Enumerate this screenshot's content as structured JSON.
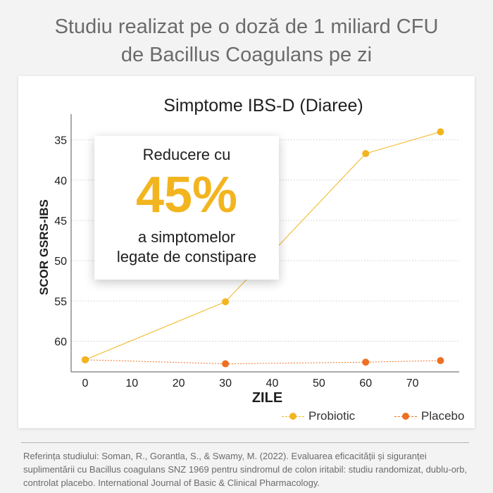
{
  "headline": {
    "line1": "Studiu realizat pe o doză de 1 miliard CFU",
    "line2": "de Bacillus Coagulans pe zi"
  },
  "callout": {
    "line1": "Reducere cu",
    "big": "45%",
    "line2": "a simptomelor",
    "line3": "legate de constipare",
    "accent_color": "#f2b51f"
  },
  "reference": "Referința studiului: Soman, R., Gorantla, S., & Swamy, M. (2022). Evaluarea eficacității și siguranței suplimentării cu Bacillus coagulans SNZ 1969 pentru sindromul de colon iritabil: studiu randomizat, dublu-orb, controlat placebo. International Journal of Basic & Clinical Pharmacology.",
  "chart_data": {
    "type": "line",
    "title": "Simptome IBS-D (Diaree)",
    "xlabel": "ZILE",
    "ylabel": "SCOR GSRS-IBS",
    "x_ticks": [
      0,
      10,
      20,
      30,
      40,
      50,
      60,
      70
    ],
    "y_ticks": [
      35,
      40,
      45,
      50,
      55,
      60
    ],
    "xlim": [
      -3,
      80
    ],
    "ylim": [
      63.8,
      32.5
    ],
    "y_inverted": true,
    "grid": "horizontal, dotted",
    "legend_position": "bottom-right",
    "series": [
      {
        "name": "Probiotic",
        "color": "#f2b51f",
        "x": [
          0,
          30,
          60,
          76
        ],
        "y": [
          62.3,
          55.1,
          36.7,
          34
        ]
      },
      {
        "name": "Placebo",
        "color": "#ee7022",
        "x": [
          0,
          30,
          60,
          76
        ],
        "y": [
          62.3,
          62.8,
          62.6,
          62.4
        ]
      }
    ]
  }
}
